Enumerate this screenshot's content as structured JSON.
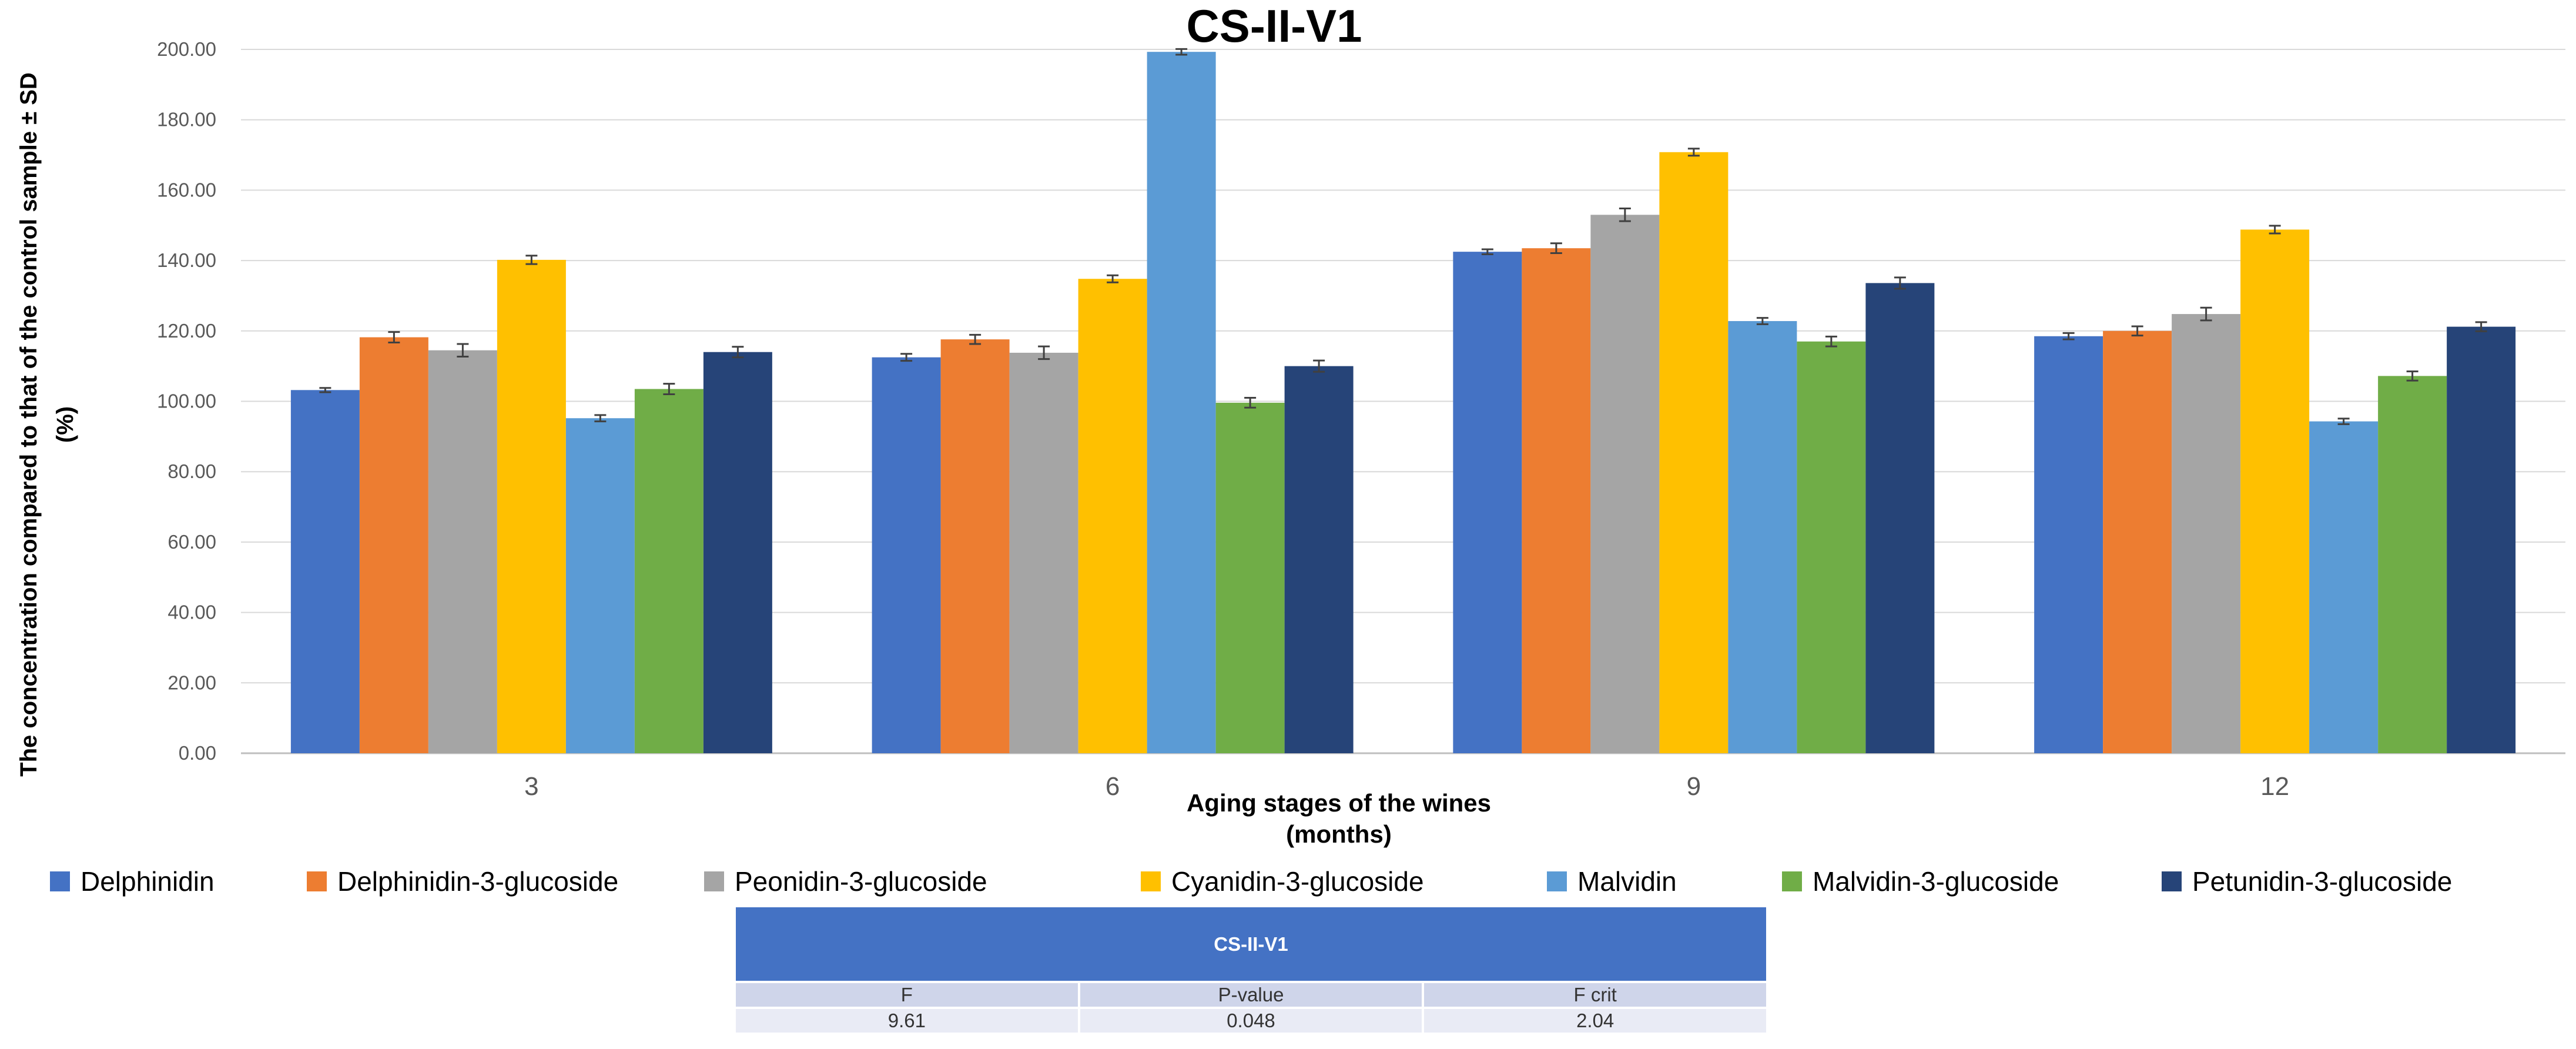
{
  "chart_data": {
    "type": "bar",
    "title": "CS-II-V1",
    "xlabel": "Aging stages of the wines (months)",
    "xlabel_lines": [
      "Aging stages of the wines",
      "(months)"
    ],
    "ylabel": "The concentration compared to that of the control sample ± SD (%)",
    "ylabel_lines": [
      "The concentration compared to that of the control sample ± SD",
      "(%)"
    ],
    "ylim": [
      0,
      200
    ],
    "yticks": [
      "0.00",
      "20.00",
      "40.00",
      "60.00",
      "80.00",
      "100.00",
      "120.00",
      "140.00",
      "160.00",
      "180.00",
      "200.00"
    ],
    "grid": true,
    "legend_position": "bottom",
    "categories": [
      "3",
      "6",
      "9",
      "12"
    ],
    "series": [
      {
        "name": "Delphinidin",
        "color": "#4472c4",
        "values": [
          103.2,
          112.5,
          142.5,
          118.5
        ],
        "errors": [
          0.6,
          1.0,
          0.7,
          0.9
        ]
      },
      {
        "name": "Delphinidin-3-glucoside",
        "color": "#ed7d31",
        "values": [
          118.2,
          117.6,
          143.5,
          120.0
        ],
        "errors": [
          1.5,
          1.3,
          1.4,
          1.3
        ]
      },
      {
        "name": "Peonidin-3-glucoside",
        "color": "#a5a5a5",
        "values": [
          114.5,
          113.8,
          153.0,
          124.8
        ],
        "errors": [
          1.8,
          1.8,
          1.8,
          1.8
        ]
      },
      {
        "name": "Cyanidin-3-glucoside",
        "color": "#ffc000",
        "values": [
          140.2,
          134.8,
          170.8,
          148.8
        ],
        "errors": [
          1.2,
          1.0,
          1.0,
          1.1
        ]
      },
      {
        "name": "Malvidin",
        "color": "#5b9bd5",
        "values": [
          95.2,
          199.3,
          122.8,
          94.3
        ],
        "errors": [
          0.9,
          0.8,
          0.9,
          0.8
        ]
      },
      {
        "name": "Malvidin-3-glucoside",
        "color": "#70ad47",
        "values": [
          103.5,
          99.6,
          117.0,
          107.2
        ],
        "errors": [
          1.5,
          1.4,
          1.4,
          1.3
        ]
      },
      {
        "name": "Petunidin-3-glucoside",
        "color": "#264478",
        "values": [
          114.0,
          110.0,
          133.6,
          121.2
        ],
        "errors": [
          1.5,
          1.6,
          1.6,
          1.3
        ]
      }
    ]
  },
  "stats_table": {
    "title": "CS-II-V1",
    "headers": [
      "F",
      "P-value",
      "F crit"
    ],
    "values": [
      "9.61",
      "0.048",
      "2.04"
    ]
  }
}
